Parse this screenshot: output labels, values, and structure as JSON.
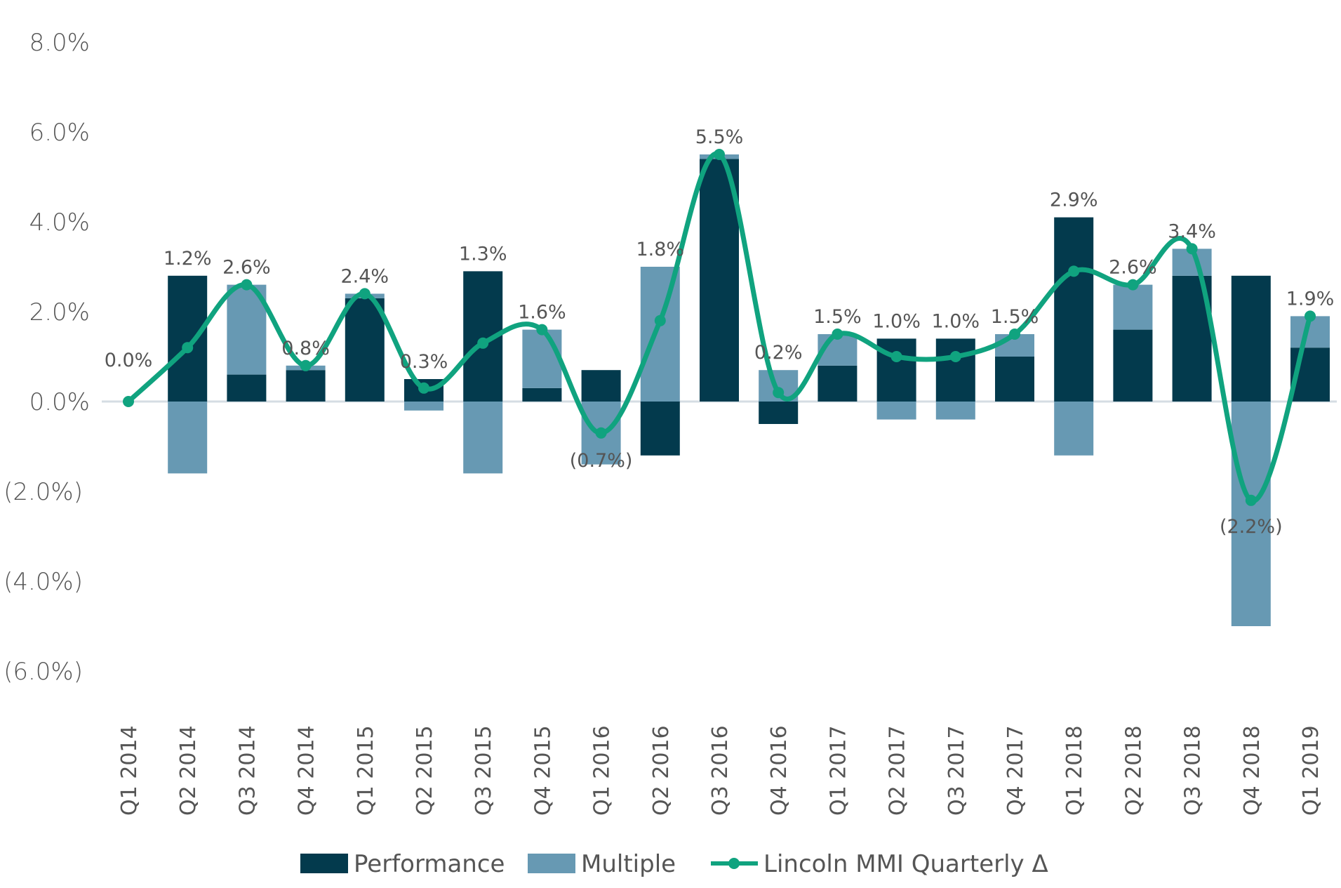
{
  "chart_data": {
    "type": "bar",
    "subtype": "stacked-bar-with-line",
    "title": "",
    "xlabel": "",
    "ylabel": "",
    "ylim": [
      -6,
      8
    ],
    "y_ticks": [
      8,
      6,
      4,
      2,
      0,
      -2,
      -4,
      -6
    ],
    "y_tick_labels": [
      "8.0%",
      "6.0%",
      "4.0%",
      "2.0%",
      "0.0%",
      "(2.0%)",
      "(4.0%)",
      "(6.0%)"
    ],
    "grid": false,
    "legend_position": "bottom",
    "categories": [
      "Q1 2014",
      "Q2 2014",
      "Q3 2014",
      "Q4 2014",
      "Q1 2015",
      "Q2 2015",
      "Q3 2015",
      "Q4 2015",
      "Q1 2016",
      "Q2 2016",
      "Q3 2016",
      "Q4 2016",
      "Q1 2017",
      "Q2 2017",
      "Q3 2017",
      "Q4 2017",
      "Q1 2018",
      "Q2 2018",
      "Q3 2018",
      "Q4 2018",
      "Q1 2019"
    ],
    "series": [
      {
        "name": "Performance",
        "type": "bar",
        "color": "#033A4D",
        "values": [
          0.0,
          2.8,
          0.6,
          0.7,
          2.3,
          0.5,
          2.9,
          0.3,
          0.7,
          -1.2,
          5.4,
          -0.5,
          0.8,
          1.4,
          1.4,
          1.0,
          4.1,
          1.6,
          2.8,
          2.8,
          1.2
        ]
      },
      {
        "name": "Multiple",
        "type": "bar",
        "color": "#6799B3",
        "values": [
          0.0,
          -1.6,
          2.0,
          0.1,
          0.1,
          -0.2,
          -1.6,
          1.3,
          -1.4,
          3.0,
          0.1,
          0.7,
          0.7,
          -0.4,
          -0.4,
          0.5,
          -1.2,
          1.0,
          0.6,
          -5.0,
          0.7
        ]
      },
      {
        "name": "Lincoln MMI Quarterly Δ",
        "type": "line",
        "color": "#10A37F",
        "values": [
          0.0,
          1.2,
          2.6,
          0.8,
          2.4,
          0.3,
          1.3,
          1.6,
          -0.7,
          1.8,
          5.5,
          0.2,
          1.5,
          1.0,
          1.0,
          1.5,
          2.9,
          2.6,
          3.4,
          -2.2,
          1.9
        ],
        "data_labels": [
          "0.0%",
          "1.2%",
          "2.6%",
          "0.8%",
          "2.4%",
          "0.3%",
          "1.3%",
          "1.6%",
          "(0.7%)",
          "1.8%",
          "5.5%",
          "0.2%",
          "1.5%",
          "1.0%",
          "1.0%",
          "1.5%",
          "2.9%",
          "2.6%",
          "3.4%",
          "(2.2%)",
          "1.9%"
        ]
      }
    ],
    "legend": [
      "Performance",
      "Multiple",
      "Lincoln MMI Quarterly Δ"
    ]
  }
}
